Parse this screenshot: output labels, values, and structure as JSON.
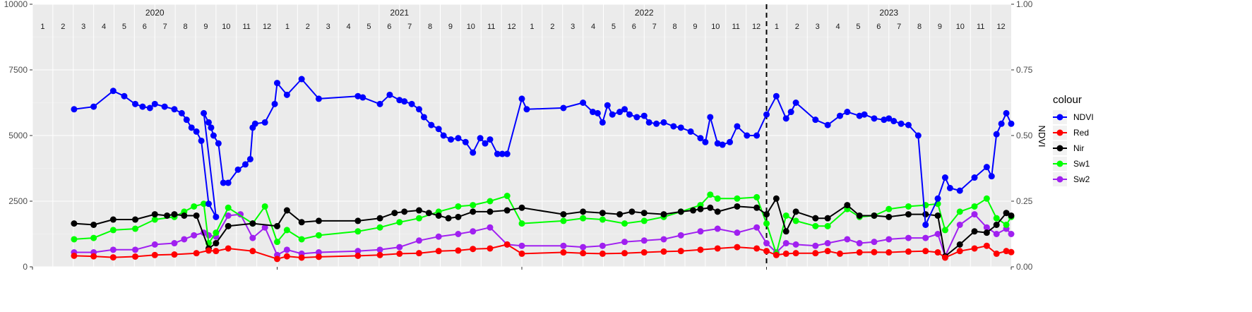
{
  "chart_data": {
    "type": "line",
    "title": "",
    "xlabel": "",
    "ylabel_left": "",
    "ylabel_right": "NDVI",
    "ylim_left": [
      0,
      10000
    ],
    "ylim_right": [
      0.0,
      1.0
    ],
    "yticks_left": [
      "0",
      "2500",
      "5000",
      "7500",
      "10000"
    ],
    "yticks_right": [
      "0.00",
      "0.25",
      "0.50",
      "0.75",
      "1.00"
    ],
    "x_range": [
      2020.0,
      2024.0
    ],
    "years": [
      {
        "label": "2020",
        "start": 2020.0
      },
      {
        "label": "2021",
        "start": 2021.0
      },
      {
        "label": "2022",
        "start": 2022.0
      },
      {
        "label": "2023",
        "start": 2023.0
      }
    ],
    "months": [
      "1",
      "2",
      "3",
      "4",
      "5",
      "6",
      "7",
      "8",
      "9",
      "10",
      "11",
      "12"
    ],
    "vline_x": 2023.0,
    "grid": true,
    "legend": {
      "title": "colour",
      "position": "right"
    },
    "series": [
      {
        "name": "NDVI",
        "color": "#0000ff",
        "axis": "right",
        "x": [
          2020.17,
          2020.25,
          2020.33,
          2020.375,
          2020.42,
          2020.45,
          2020.48,
          2020.5,
          2020.54,
          2020.58,
          2020.61,
          2020.63,
          2020.65,
          2020.67,
          2020.69,
          2020.72,
          2020.75,
          2020.7,
          2020.72,
          2020.73,
          2020.74,
          2020.76,
          2020.78,
          2020.8,
          2020.84,
          2020.87,
          2020.89,
          2020.9,
          2020.91,
          2020.95,
          2020.99,
          2021.0,
          2021.04,
          2021.1,
          2021.17,
          2021.33,
          2021.35,
          2021.42,
          2021.46,
          2021.5,
          2021.52,
          2021.55,
          2021.58,
          2021.6,
          2021.63,
          2021.66,
          2021.68,
          2021.71,
          2021.74,
          2021.77,
          2021.8,
          2021.83,
          2021.85,
          2021.87,
          2021.9,
          2021.92,
          2021.94,
          2022.0,
          2022.02,
          2022.17,
          2022.25,
          2022.29,
          2022.31,
          2022.33,
          2022.35,
          2022.37,
          2022.4,
          2022.42,
          2022.44,
          2022.47,
          2022.5,
          2022.52,
          2022.55,
          2022.58,
          2022.62,
          2022.65,
          2022.69,
          2022.73,
          2022.75,
          2022.77,
          2022.8,
          2022.82,
          2022.85,
          2022.88,
          2022.92,
          2022.96,
          2023.0,
          2023.04,
          2023.08,
          2023.1,
          2023.12,
          2023.2,
          2023.25,
          2023.3,
          2023.33,
          2023.38,
          2023.4,
          2023.44,
          2023.48,
          2023.5,
          2023.52,
          2023.55,
          2023.58,
          2023.62,
          2023.65,
          2023.7,
          2023.73,
          2023.75,
          2023.79,
          2023.85,
          2023.9,
          2023.92,
          2023.94,
          2023.96,
          2023.98,
          2024.0
        ],
        "values": [
          0.6,
          0.61,
          0.67,
          0.65,
          0.62,
          0.61,
          0.605,
          0.62,
          0.61,
          0.6,
          0.585,
          0.56,
          0.53,
          0.515,
          0.48,
          0.24,
          0.19,
          0.585,
          0.55,
          0.53,
          0.5,
          0.47,
          0.32,
          0.32,
          0.37,
          0.39,
          0.41,
          0.53,
          0.545,
          0.55,
          0.62,
          0.7,
          0.655,
          0.715,
          0.64,
          0.65,
          0.645,
          0.62,
          0.655,
          0.635,
          0.63,
          0.62,
          0.6,
          0.57,
          0.54,
          0.525,
          0.5,
          0.485,
          0.49,
          0.475,
          0.435,
          0.49,
          0.47,
          0.485,
          0.43,
          0.43,
          0.43,
          0.64,
          0.6,
          0.605,
          0.625,
          0.59,
          0.585,
          0.55,
          0.615,
          0.58,
          0.59,
          0.6,
          0.58,
          0.57,
          0.575,
          0.55,
          0.545,
          0.55,
          0.535,
          0.53,
          0.515,
          0.49,
          0.475,
          0.57,
          0.47,
          0.465,
          0.475,
          0.535,
          0.5,
          0.5,
          0.58,
          0.65,
          0.565,
          0.59,
          0.625,
          0.56,
          0.54,
          0.575,
          0.59,
          0.575,
          0.58,
          0.565,
          0.56,
          0.565,
          0.555,
          0.545,
          0.54,
          0.5,
          0.16,
          0.26,
          0.34,
          0.3,
          0.29,
          0.34,
          0.38,
          0.345,
          0.505,
          0.545,
          0.585,
          0.545
        ]
      },
      {
        "name": "Red",
        "color": "#ff0000",
        "axis": "left",
        "x": [
          2020.17,
          2020.25,
          2020.33,
          2020.42,
          2020.5,
          2020.58,
          2020.67,
          2020.72,
          2020.75,
          2020.8,
          2020.9,
          2021.0,
          2021.04,
          2021.1,
          2021.17,
          2021.33,
          2021.42,
          2021.5,
          2021.58,
          2021.66,
          2021.74,
          2021.8,
          2021.87,
          2021.94,
          2022.0,
          2022.17,
          2022.25,
          2022.33,
          2022.42,
          2022.5,
          2022.58,
          2022.65,
          2022.73,
          2022.8,
          2022.88,
          2022.96,
          2023.0,
          2023.04,
          2023.08,
          2023.12,
          2023.2,
          2023.25,
          2023.3,
          2023.38,
          2023.44,
          2023.5,
          2023.58,
          2023.65,
          2023.7,
          2023.73,
          2023.79,
          2023.85,
          2023.9,
          2023.94,
          2023.98,
          2024.0
        ],
        "values": [
          420,
          400,
          360,
          390,
          450,
          470,
          520,
          620,
          600,
          700,
          600,
          300,
          400,
          350,
          380,
          420,
          450,
          500,
          520,
          600,
          620,
          680,
          700,
          850,
          500,
          550,
          520,
          500,
          520,
          550,
          580,
          600,
          650,
          700,
          750,
          700,
          600,
          450,
          500,
          520,
          520,
          600,
          500,
          550,
          560,
          550,
          580,
          600,
          550,
          350,
          600,
          700,
          800,
          500,
          600,
          560
        ]
      },
      {
        "name": "Nir",
        "color": "#000000",
        "axis": "left",
        "x": [
          2020.17,
          2020.25,
          2020.33,
          2020.42,
          2020.5,
          2020.55,
          2020.58,
          2020.62,
          2020.67,
          2020.72,
          2020.75,
          2020.8,
          2020.9,
          2021.0,
          2021.04,
          2021.1,
          2021.17,
          2021.33,
          2021.42,
          2021.48,
          2021.52,
          2021.58,
          2021.62,
          2021.66,
          2021.7,
          2021.74,
          2021.8,
          2021.87,
          2021.94,
          2022.0,
          2022.17,
          2022.25,
          2022.33,
          2022.4,
          2022.45,
          2022.5,
          2022.58,
          2022.65,
          2022.7,
          2022.73,
          2022.77,
          2022.8,
          2022.88,
          2022.96,
          2023.0,
          2023.04,
          2023.08,
          2023.12,
          2023.2,
          2023.25,
          2023.33,
          2023.38,
          2023.44,
          2023.5,
          2023.58,
          2023.65,
          2023.7,
          2023.73,
          2023.79,
          2023.85,
          2023.9,
          2023.94,
          2023.98,
          2024.0
        ],
        "values": [
          1650,
          1600,
          1800,
          1800,
          2000,
          1950,
          2000,
          1950,
          1950,
          700,
          900,
          1550,
          1650,
          1550,
          2150,
          1700,
          1750,
          1750,
          1850,
          2050,
          2100,
          2150,
          2050,
          1950,
          1850,
          1900,
          2100,
          2100,
          2150,
          2250,
          2000,
          2100,
          2050,
          2000,
          2100,
          2050,
          2000,
          2100,
          2150,
          2200,
          2250,
          2100,
          2300,
          2250,
          2000,
          2600,
          1350,
          2100,
          1850,
          1850,
          2350,
          1950,
          1950,
          1900,
          2000,
          2000,
          1950,
          400,
          850,
          1350,
          1300,
          1600,
          2050,
          1950
        ]
      },
      {
        "name": "Sw1",
        "color": "#00ff00",
        "axis": "left",
        "x": [
          2020.17,
          2020.25,
          2020.33,
          2020.42,
          2020.5,
          2020.58,
          2020.62,
          2020.66,
          2020.7,
          2020.72,
          2020.75,
          2020.8,
          2020.9,
          2020.95,
          2021.0,
          2021.04,
          2021.1,
          2021.17,
          2021.33,
          2021.42,
          2021.5,
          2021.58,
          2021.66,
          2021.74,
          2021.8,
          2021.87,
          2021.94,
          2022.0,
          2022.17,
          2022.25,
          2022.33,
          2022.42,
          2022.5,
          2022.58,
          2022.65,
          2022.73,
          2022.77,
          2022.8,
          2022.88,
          2022.96,
          2023.0,
          2023.04,
          2023.08,
          2023.12,
          2023.2,
          2023.25,
          2023.33,
          2023.38,
          2023.44,
          2023.5,
          2023.58,
          2023.65,
          2023.7,
          2023.73,
          2023.79,
          2023.85,
          2023.9,
          2023.94,
          2023.98,
          2024.0
        ],
        "values": [
          1050,
          1100,
          1400,
          1450,
          1800,
          1900,
          2100,
          2300,
          2400,
          900,
          1300,
          2250,
          1650,
          2300,
          950,
          1400,
          1050,
          1200,
          1350,
          1500,
          1700,
          1850,
          2100,
          2300,
          2350,
          2500,
          2700,
          1650,
          1750,
          1850,
          1800,
          1650,
          1750,
          1900,
          2100,
          2350,
          2750,
          2600,
          2600,
          2650,
          1650,
          500,
          1950,
          1750,
          1550,
          1550,
          2200,
          1900,
          1950,
          2200,
          2300,
          2350,
          2400,
          1400,
          2100,
          2300,
          2600,
          1850,
          1600,
          1900
        ]
      },
      {
        "name": "Sw2",
        "color": "#a020f0",
        "axis": "left",
        "x": [
          2020.17,
          2020.25,
          2020.33,
          2020.42,
          2020.5,
          2020.58,
          2020.62,
          2020.66,
          2020.7,
          2020.72,
          2020.75,
          2020.8,
          2020.85,
          2020.9,
          2020.95,
          2021.0,
          2021.04,
          2021.1,
          2021.17,
          2021.33,
          2021.42,
          2021.5,
          2021.58,
          2021.66,
          2021.74,
          2021.8,
          2021.87,
          2021.94,
          2022.0,
          2022.17,
          2022.25,
          2022.33,
          2022.42,
          2022.5,
          2022.58,
          2022.65,
          2022.73,
          2022.8,
          2022.88,
          2022.96,
          2023.0,
          2023.04,
          2023.08,
          2023.12,
          2023.2,
          2023.25,
          2023.33,
          2023.38,
          2023.44,
          2023.5,
          2023.58,
          2023.65,
          2023.7,
          2023.73,
          2023.79,
          2023.85,
          2023.9,
          2023.94,
          2023.98,
          2024.0
        ],
        "values": [
          550,
          550,
          650,
          650,
          850,
          900,
          1050,
          1200,
          1300,
          1200,
          1150,
          1950,
          2000,
          1100,
          1500,
          450,
          650,
          500,
          550,
          600,
          650,
          750,
          1000,
          1150,
          1250,
          1350,
          1500,
          850,
          800,
          800,
          750,
          800,
          950,
          1000,
          1050,
          1200,
          1350,
          1450,
          1300,
          1500,
          900,
          550,
          900,
          850,
          800,
          900,
          1050,
          900,
          950,
          1050,
          1100,
          1100,
          1250,
          400,
          1600,
          2000,
          1500,
          1250,
          1450,
          1250
        ]
      }
    ]
  }
}
